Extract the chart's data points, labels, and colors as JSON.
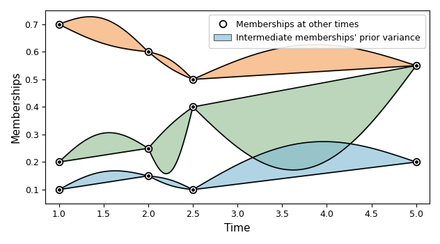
{
  "xlabel": "Time",
  "ylabel": "Memberships",
  "xlim": [
    0.85,
    5.15
  ],
  "ylim": [
    0.05,
    0.75
  ],
  "xticks": [
    1.0,
    1.5,
    2.0,
    2.5,
    3.0,
    3.5,
    4.0,
    4.5,
    5.0
  ],
  "orange_upper_anchors": [
    [
      1.0,
      0.7
    ],
    [
      2.0,
      0.6
    ],
    [
      2.5,
      0.5
    ],
    [
      5.0,
      0.55
    ]
  ],
  "orange_lower_anchors": [
    [
      1.0,
      0.7
    ],
    [
      2.0,
      0.6
    ],
    [
      2.5,
      0.5
    ],
    [
      5.0,
      0.55
    ]
  ],
  "orange_upper_offsets": [
    0.0,
    0.07,
    0.03,
    0.1
  ],
  "orange_lower_offsets": [
    0.0,
    -0.01,
    -0.01,
    0.0
  ],
  "green_upper_anchors": [
    [
      1.0,
      0.2
    ],
    [
      2.0,
      0.25
    ],
    [
      2.5,
      0.4
    ],
    [
      5.0,
      0.55
    ]
  ],
  "green_lower_anchors": [
    [
      1.0,
      0.2
    ],
    [
      2.0,
      0.25
    ],
    [
      2.5,
      0.4
    ],
    [
      5.0,
      0.55
    ]
  ],
  "green_upper_offsets": [
    0.0,
    0.07,
    0.01,
    0.0
  ],
  "green_lower_offsets": [
    0.0,
    -0.01,
    -0.16,
    -0.3
  ],
  "blue_upper_anchors": [
    [
      1.0,
      0.1
    ],
    [
      2.0,
      0.15
    ],
    [
      2.5,
      0.1
    ],
    [
      5.0,
      0.2
    ]
  ],
  "blue_lower_anchors": [
    [
      1.0,
      0.1
    ],
    [
      2.0,
      0.15
    ],
    [
      2.5,
      0.1
    ],
    [
      5.0,
      0.2
    ]
  ],
  "blue_upper_offsets": [
    0.0,
    0.04,
    0.0,
    0.0
  ],
  "blue_lower_offsets": [
    0.0,
    -0.02,
    0.0,
    0.0
  ],
  "orange_color": "#F4A460",
  "green_color": "#8FBC8F",
  "blue_color": "#7EB8D4",
  "legend_dot_label": "Memberships at other times",
  "legend_fill_label": "Intermediate memberships' prior variance",
  "figsize": [
    6.32,
    3.5
  ],
  "dpi": 100
}
